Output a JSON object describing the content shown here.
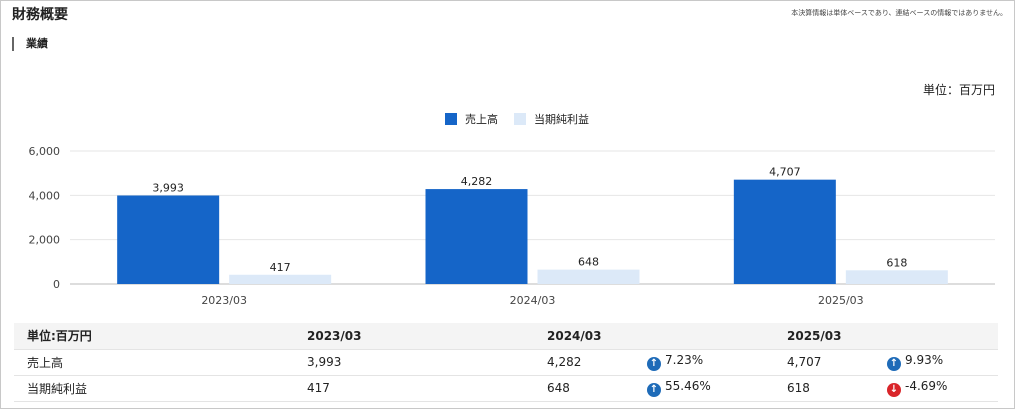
{
  "header": {
    "title": "財務概要",
    "note": "本決算情報は単体ベースであり、連結ベースの情報ではありません。",
    "section": "業績",
    "unit": "単位：百万円"
  },
  "colors": {
    "sales": "#1565c8",
    "profit": "#dce9f8",
    "up": "#1e6bb8",
    "down": "#d9252a"
  },
  "chart_data": {
    "type": "bar",
    "categories": [
      "2023/03",
      "2024/03",
      "2025/03"
    ],
    "series": [
      {
        "name": "売上高",
        "values": [
          3993,
          4282,
          4707
        ],
        "labels": [
          "3,993",
          "4,282",
          "4,707"
        ]
      },
      {
        "name": "当期純利益",
        "values": [
          417,
          648,
          618
        ],
        "labels": [
          "417",
          "648",
          "618"
        ]
      }
    ],
    "ylim": [
      0,
      6000
    ],
    "yticks": [
      0,
      2000,
      4000,
      6000
    ],
    "ytick_labels": [
      "0",
      "2,000",
      "4,000",
      "6,000"
    ],
    "grid": true,
    "legend": "top-center"
  },
  "table": {
    "headers": [
      "単位:百万円",
      "2023/03",
      "",
      "2024/03",
      "",
      "2025/03",
      ""
    ],
    "rows": [
      {
        "label": "売上高",
        "y1": "3,993",
        "y2": "4,282",
        "y2_change": "7.23%",
        "y2_dir": "up",
        "y3": "4,707",
        "y3_change": "9.93%",
        "y3_dir": "up"
      },
      {
        "label": "当期純利益",
        "y1": "417",
        "y2": "648",
        "y2_change": "55.46%",
        "y2_dir": "up",
        "y3": "618",
        "y3_change": "-4.69%",
        "y3_dir": "down"
      }
    ]
  }
}
